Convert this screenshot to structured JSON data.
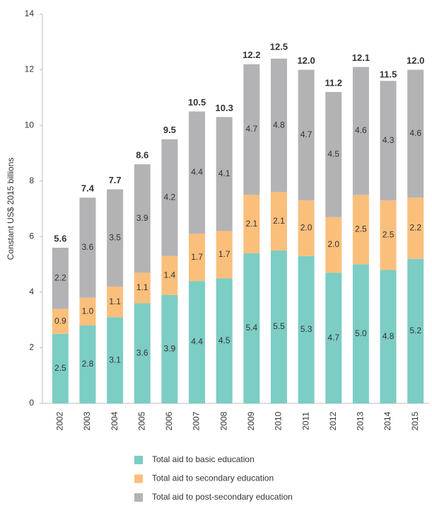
{
  "chart_data": {
    "type": "stacked_bar",
    "ylabel": "Constant US$ 2015 billions",
    "categories": [
      "2002",
      "2003",
      "2004",
      "2005",
      "2006",
      "2007",
      "2008",
      "2009",
      "2010",
      "2011",
      "2012",
      "2013",
      "2014",
      "2015"
    ],
    "series": [
      {
        "name": "Total aid to basic education",
        "color": "#7ccdc4",
        "values": [
          2.5,
          2.8,
          3.1,
          3.6,
          3.9,
          4.4,
          4.5,
          5.4,
          5.5,
          5.3,
          4.7,
          5.0,
          4.8,
          5.2
        ],
        "value_labels": [
          "2.5",
          "2.8",
          "3.1",
          "3.6",
          "3.9",
          "4.4",
          "4.5",
          "5.4",
          "5.5",
          "5.3",
          "4.7",
          "5.0",
          "4.8",
          "5.2"
        ]
      },
      {
        "name": "Total aid to secondary education",
        "color": "#fbbf7c",
        "values": [
          0.9,
          1.0,
          1.1,
          1.1,
          1.4,
          1.7,
          1.7,
          2.1,
          2.1,
          2.0,
          2.0,
          2.5,
          2.5,
          2.2
        ],
        "value_labels": [
          "0.9",
          "1.0",
          "1.1",
          "1.1",
          "1.4",
          "1.7",
          "1.7",
          "2.1",
          "2.1",
          "2.0",
          "2.0",
          "2.5",
          "2.5",
          "2.2"
        ]
      },
      {
        "name": "Total aid to post-secondary education",
        "color": "#b3b3b6",
        "values": [
          2.2,
          3.6,
          3.5,
          3.9,
          4.2,
          4.4,
          4.1,
          4.7,
          4.8,
          4.7,
          4.5,
          4.6,
          4.3,
          4.6
        ],
        "value_labels": [
          "2.2",
          "3.6",
          "3.5",
          "3.9",
          "4.2",
          "4.4",
          "4.1",
          "4.7",
          "4.8",
          "4.7",
          "4.5",
          "4.6",
          "4.3",
          "4.6"
        ]
      }
    ],
    "totals": {
      "values": [
        5.6,
        7.4,
        7.7,
        8.6,
        9.5,
        10.5,
        10.3,
        12.2,
        12.5,
        12.0,
        11.2,
        12.1,
        11.5,
        12.0
      ],
      "value_labels": [
        "5.6",
        "7.4",
        "7.7",
        "8.6",
        "9.5",
        "10.5",
        "10.3",
        "12.2",
        "12.5",
        "12.0",
        "11.2",
        "12.1",
        "11.5",
        "12.0"
      ]
    },
    "ylim": [
      0,
      14
    ],
    "yticks": [
      0,
      2,
      4,
      6,
      8,
      10,
      12,
      14
    ],
    "grid": false
  }
}
